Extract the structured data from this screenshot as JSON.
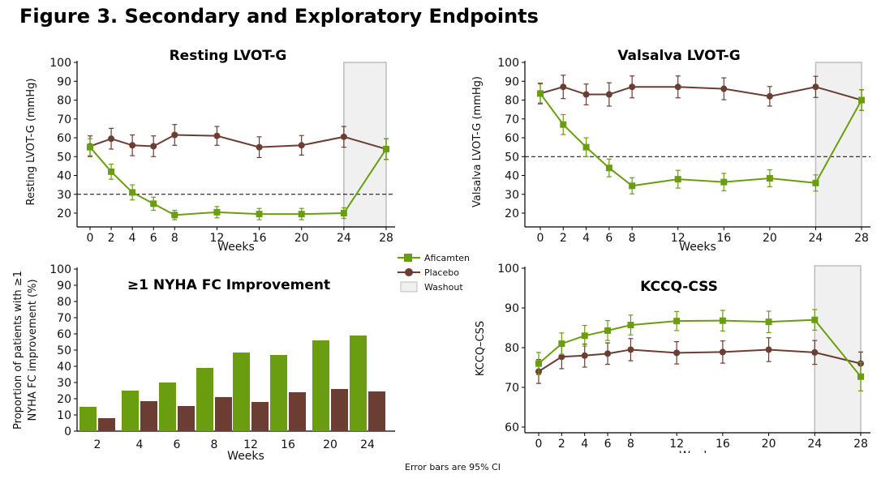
{
  "figure_title": "Figure 3. Secondary and Exploratory Endpoints",
  "legend": {
    "items": [
      {
        "label": "Aficamten",
        "color": "#6a9e10",
        "marker": "square"
      },
      {
        "label": "Placebo",
        "color": "#6b3d33",
        "marker": "circle"
      },
      {
        "label": "Washout",
        "color": "#f0f0f0",
        "marker": "box"
      }
    ]
  },
  "footnote": "Error bars are 95% CI",
  "chart_data": [
    {
      "type": "line",
      "title": "Resting LVOT-G",
      "xlabel": "Weeks",
      "ylabel": "Resting LVOT-G (mmHg)",
      "x": [
        0,
        2,
        4,
        6,
        8,
        12,
        16,
        20,
        24,
        28
      ],
      "xlim": [
        0,
        28
      ],
      "ylim": [
        20,
        100
      ],
      "yticks": [
        20,
        30,
        40,
        50,
        60,
        70,
        80,
        90,
        100
      ],
      "reference_line": 30,
      "washout": [
        24,
        28
      ],
      "series": [
        {
          "name": "Aficamten",
          "values": [
            55,
            42,
            31,
            25,
            19,
            20.5,
            19.5,
            19.5,
            20,
            54
          ],
          "ci": [
            4.5,
            4,
            4,
            3.5,
            2.5,
            3,
            3,
            3,
            2.8,
            5.5
          ]
        },
        {
          "name": "Placebo",
          "values": [
            55.5,
            59.5,
            56,
            55.5,
            61.5,
            61,
            55,
            56,
            60.5,
            54
          ],
          "ci": [
            5.5,
            5.5,
            5.5,
            5.5,
            5.5,
            5,
            5.5,
            5.2,
            5.5,
            5.5
          ]
        }
      ]
    },
    {
      "type": "line",
      "title": "Valsalva LVOT-G",
      "xlabel": "Weeks",
      "ylabel": "Valsalva LVOT-G (mmHg)",
      "x": [
        0,
        2,
        4,
        6,
        8,
        12,
        16,
        20,
        24,
        28
      ],
      "xlim": [
        0,
        28
      ],
      "ylim": [
        20,
        100
      ],
      "yticks": [
        20,
        30,
        40,
        50,
        60,
        70,
        80,
        90,
        100
      ],
      "reference_line": 50,
      "washout": [
        24,
        28
      ],
      "series": [
        {
          "name": "Aficamten",
          "values": [
            83.5,
            67,
            55,
            44,
            34.5,
            38,
            36.5,
            38.5,
            36,
            80
          ],
          "ci": [
            5,
            5.3,
            5,
            4.7,
            4.3,
            4.7,
            4.6,
            4.5,
            4.3,
            5.5
          ]
        },
        {
          "name": "Placebo",
          "values": [
            83.5,
            87,
            83,
            83,
            87,
            87,
            86,
            82,
            87,
            80
          ],
          "ci": [
            5.5,
            6.2,
            5.5,
            6.2,
            5.8,
            5.8,
            5.8,
            5.2,
            5.6,
            5.5
          ]
        }
      ]
    },
    {
      "type": "bar",
      "title": "≥1 NYHA FC Improvement",
      "xlabel": "Weeks",
      "ylabel": [
        "Proportion of patients with ≥1",
        "NYHA FC improvement (%)"
      ],
      "categories": [
        "2",
        "4",
        "6",
        "8",
        "12",
        "16",
        "20",
        "24"
      ],
      "ylim": [
        0,
        100
      ],
      "yticks": [
        0,
        10,
        20,
        30,
        40,
        50,
        60,
        70,
        80,
        90,
        100
      ],
      "series": [
        {
          "name": "Aficamten",
          "values": [
            15,
            25,
            30,
            39,
            48.5,
            47,
            56,
            59
          ]
        },
        {
          "name": "Placebo",
          "values": [
            8,
            18.5,
            15.5,
            21,
            18,
            24,
            26,
            24.5
          ]
        }
      ]
    },
    {
      "type": "line",
      "title": "KCCQ-CSS",
      "xlabel": "Weeks",
      "ylabel": "KCCQ–CSS",
      "x": [
        0,
        2,
        4,
        6,
        8,
        12,
        16,
        20,
        24,
        28
      ],
      "xlim": [
        0,
        28
      ],
      "ylim": [
        60,
        100
      ],
      "yticks": [
        60,
        70,
        80,
        90,
        100
      ],
      "washout": [
        24,
        28
      ],
      "series": [
        {
          "name": "Aficamten",
          "values": [
            76,
            81,
            83,
            84.3,
            85.7,
            86.7,
            86.8,
            86.5,
            87,
            72.7
          ],
          "ci": [
            2.8,
            2.7,
            2.6,
            2.5,
            2.5,
            2.4,
            2.6,
            2.7,
            2.6,
            3.6
          ]
        },
        {
          "name": "Placebo",
          "values": [
            74,
            77.7,
            78,
            78.5,
            79.5,
            78.7,
            78.9,
            79.5,
            78.8,
            76
          ],
          "ci": [
            3,
            3,
            2.9,
            2.7,
            2.8,
            2.8,
            2.8,
            3,
            3,
            2.9
          ]
        }
      ]
    }
  ]
}
